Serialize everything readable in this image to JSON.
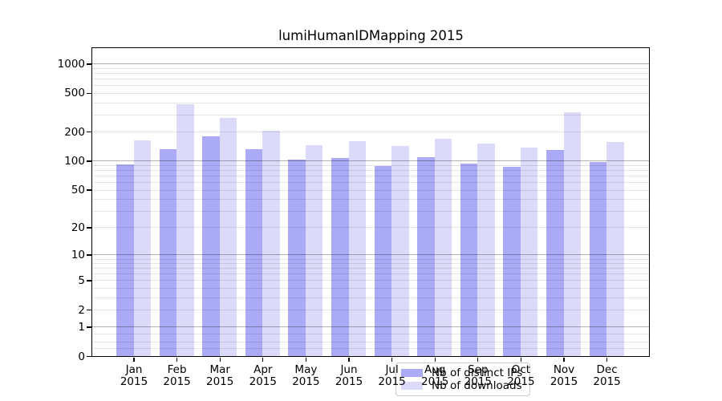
{
  "chart_data": {
    "type": "bar",
    "title": "lumiHumanIDMapping 2015",
    "categories": [
      "Jan",
      "Feb",
      "Mar",
      "Apr",
      "May",
      "Jun",
      "Jul",
      "Aug",
      "Sep",
      "Oct",
      "Nov",
      "Dec"
    ],
    "x_tick_year": "2015",
    "series": [
      {
        "name": "Nb of distinct IPs",
        "color": "#aaaaf7",
        "values": [
          92,
          132,
          179,
          132,
          103,
          107,
          89,
          108,
          93,
          86,
          130,
          97
        ]
      },
      {
        "name": "Nb of downloads",
        "color": "#dbdbf9",
        "values": [
          163,
          380,
          279,
          205,
          145,
          159,
          142,
          170,
          150,
          137,
          315,
          157
        ]
      }
    ],
    "yscale": "log1p",
    "ylim": [
      0,
      1490
    ],
    "yticks": [
      0,
      1,
      2,
      5,
      10,
      20,
      50,
      100,
      200,
      500,
      1000
    ],
    "grid_major": [
      1,
      10,
      100,
      1000
    ],
    "grid_minor": [
      0.2,
      0.4,
      0.7,
      2,
      3,
      4,
      5,
      6,
      7,
      8,
      9,
      20,
      30,
      40,
      50,
      60,
      70,
      80,
      90,
      200,
      300,
      400,
      500,
      600,
      700,
      800,
      900
    ],
    "legend_position": "lower center",
    "xlabel": "",
    "ylabel": ""
  },
  "legend": {
    "items": [
      "Nb of distinct IPs",
      "Nb of downloads"
    ]
  }
}
